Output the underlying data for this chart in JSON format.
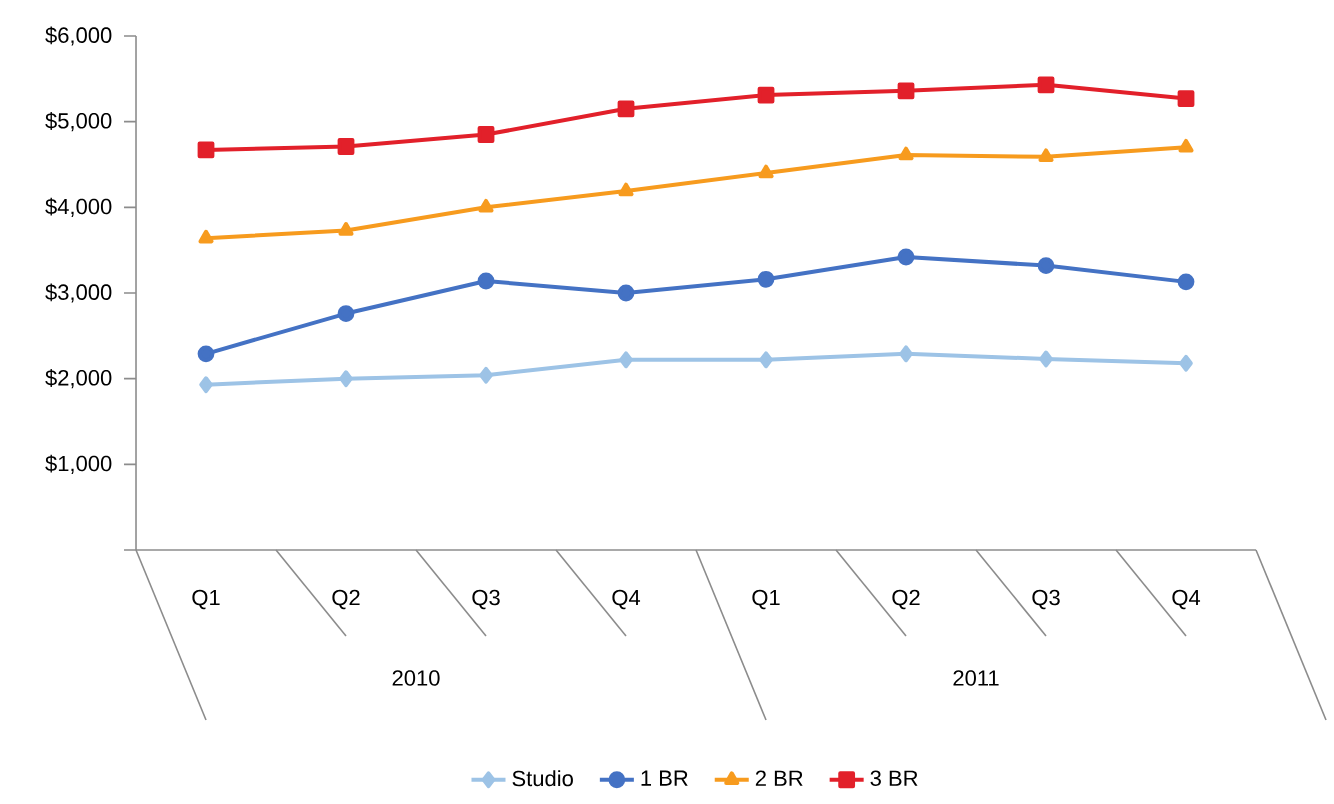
{
  "chart_data": {
    "type": "line",
    "categories": [
      "Q1",
      "Q2",
      "Q3",
      "Q4",
      "Q1",
      "Q2",
      "Q3",
      "Q4"
    ],
    "annotations": [
      "2010",
      "2011"
    ],
    "series": [
      {
        "name": "Studio",
        "color": "#9dc3e6",
        "marker": "diamond",
        "values": [
          1930,
          2000,
          2040,
          2220,
          2220,
          2290,
          2230,
          2180
        ]
      },
      {
        "name": "1 BR",
        "color": "#4472c4",
        "marker": "circle",
        "values": [
          2290,
          2760,
          3140,
          3000,
          3160,
          3420,
          3320,
          3130
        ]
      },
      {
        "name": "2 BR",
        "color": "#f79b1e",
        "marker": "triangle",
        "values": [
          3640,
          3730,
          4000,
          4190,
          4400,
          4610,
          4590,
          4700
        ]
      },
      {
        "name": "3 BR",
        "color": "#e2202a",
        "marker": "square",
        "values": [
          4670,
          4710,
          4850,
          5150,
          5310,
          5360,
          5430,
          5270
        ]
      }
    ],
    "ylim": [
      0,
      6000
    ],
    "yticks": [
      {
        "value": 0,
        "label": null
      },
      {
        "value": 1000,
        "label": "$1,000"
      },
      {
        "value": 2000,
        "label": "$2,000"
      },
      {
        "value": 3000,
        "label": "$3,000"
      },
      {
        "value": 4000,
        "label": "$4,000"
      },
      {
        "value": 5000,
        "label": "$5,000"
      },
      {
        "value": 6000,
        "label": "$6,000"
      }
    ],
    "grid": false,
    "legend": "bottom",
    "line_style": "solid"
  }
}
